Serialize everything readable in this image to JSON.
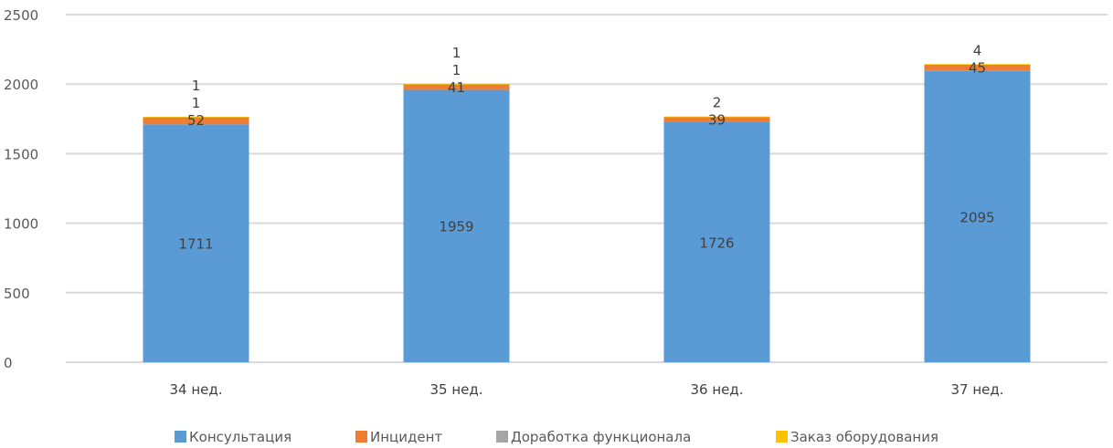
{
  "chart_data": {
    "type": "bar",
    "stacked": true,
    "categories": [
      "34 нед.",
      "35 нед.",
      "36 нед.",
      "37 нед."
    ],
    "series": [
      {
        "name": "Консультация",
        "color": "#5B9BD5",
        "values": [
          1711,
          1959,
          1726,
          2095
        ]
      },
      {
        "name": "Инцидент",
        "color": "#ED7D31",
        "values": [
          52,
          41,
          39,
          45
        ]
      },
      {
        "name": "Доработка функционала",
        "color": "#A5A5A5",
        "values": [
          1,
          1,
          0,
          0
        ]
      },
      {
        "name": "Заказ оборудования",
        "color": "#FFC000",
        "values": [
          1,
          1,
          2,
          4
        ]
      }
    ],
    "data_labels": [
      [
        "1711",
        "1959",
        "1726",
        "2095"
      ],
      [
        "52",
        "41",
        "39",
        "45"
      ],
      [
        "1",
        "1",
        "",
        ""
      ],
      [
        "1",
        "1",
        "2",
        "4"
      ]
    ],
    "yticks": [
      "0",
      "500",
      "1000",
      "1500",
      "2000",
      "2500"
    ],
    "ylim": [
      0,
      2500
    ],
    "grid": true,
    "legend_position": "bottom"
  }
}
